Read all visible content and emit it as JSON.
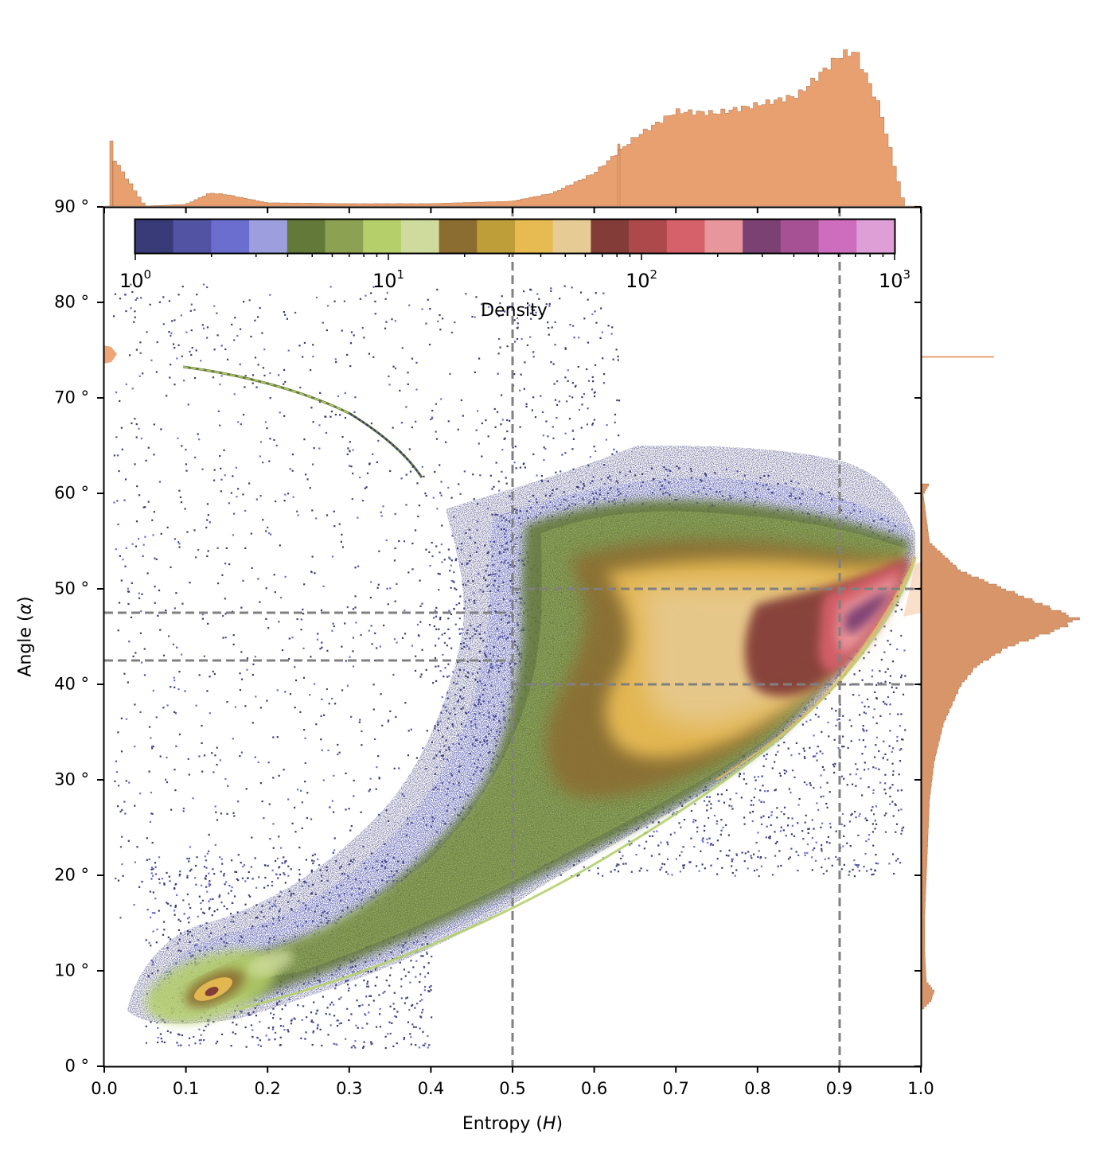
{
  "chart_data": {
    "type": "heatmap",
    "subtype": "2d-density-with-marginal-histograms",
    "xlabel": "Entropy (H)",
    "xlabel_parts": {
      "text": "Entropy (",
      "symbol": "H",
      "suffix": ")"
    },
    "ylabel": "Angle (α)",
    "ylabel_parts": {
      "text": "Angle (",
      "symbol": "α",
      "suffix": ")"
    },
    "xlim": [
      0.0,
      1.0
    ],
    "ylim": [
      0,
      90
    ],
    "x_ticks": [
      "0.0",
      "0.1",
      "0.2",
      "0.3",
      "0.4",
      "0.5",
      "0.6",
      "0.7",
      "0.8",
      "0.9",
      "1.0"
    ],
    "y_ticks": [
      "0 °",
      "10 °",
      "20 °",
      "30 °",
      "40 °",
      "50 °",
      "60 °",
      "70 °",
      "80 °",
      "90 °"
    ],
    "grid": false,
    "colorbar": {
      "label": "Density",
      "scale": "log",
      "range": [
        1,
        1000
      ],
      "tick_labels": [
        {
          "base": "10",
          "exp": "0"
        },
        {
          "base": "10",
          "exp": "1"
        },
        {
          "base": "10",
          "exp": "2"
        },
        {
          "base": "10",
          "exp": "3"
        }
      ],
      "position": "inset-top",
      "colors": [
        "#393b79",
        "#5254a3",
        "#6b6ecf",
        "#9c9ede",
        "#637939",
        "#8ca252",
        "#b5cf6b",
        "#cedb9c",
        "#8c6d31",
        "#bd9e39",
        "#e7ba52",
        "#e7cb94",
        "#843c39",
        "#ad494a",
        "#d6616b",
        "#e7969c",
        "#7b4173",
        "#a55194",
        "#ce6dbd",
        "#de9ed6"
      ]
    },
    "reference_lines": [
      {
        "orientation": "vertical",
        "x": 0.5,
        "style": "dashed",
        "color": "#808080"
      },
      {
        "orientation": "vertical",
        "x": 0.9,
        "style": "dashed",
        "color": "#808080"
      },
      {
        "orientation": "horizontal",
        "y": 50,
        "x_range": [
          0.5,
          1.0
        ],
        "style": "dashed",
        "color": "#808080"
      },
      {
        "orientation": "horizontal",
        "y": 40,
        "x_range": [
          0.5,
          1.0
        ],
        "style": "dashed",
        "color": "#808080"
      },
      {
        "orientation": "horizontal",
        "y": 47.5,
        "x_range": [
          0.0,
          0.5
        ],
        "style": "dashed",
        "color": "#808080"
      },
      {
        "orientation": "horizontal",
        "y": 42.5,
        "x_range": [
          0.0,
          0.5
        ],
        "style": "dashed",
        "color": "#808080"
      }
    ],
    "density_features": [
      {
        "name": "main-body",
        "H_range": [
          0.5,
          0.97
        ],
        "alpha_range": [
          25,
          60
        ],
        "peak_density": "~1000",
        "peak_at": {
          "H": 0.93,
          "alpha": 47
        }
      },
      {
        "name": "low-entropy-cluster",
        "H_range": [
          0.05,
          0.4
        ],
        "alpha_range": [
          3,
          15
        ],
        "peak_density": "~100",
        "peak_at": {
          "H": 0.13,
          "alpha": 7.5
        }
      },
      {
        "name": "thin-curve",
        "from": {
          "H": 0.1,
          "alpha": 73
        },
        "to": {
          "H": 0.39,
          "alpha": 61.5
        }
      },
      {
        "name": "lower-boundary-curve",
        "from": {
          "H": 0.1,
          "alpha": 5
        },
        "to": {
          "H": 0.97,
          "alpha": 53
        }
      }
    ],
    "marginal_x_histogram": {
      "color": "#e8a070",
      "bins_x": [
        0.0,
        0.05,
        0.1,
        0.13,
        0.15,
        0.2,
        0.3,
        0.4,
        0.5,
        0.55,
        0.6,
        0.65,
        0.7,
        0.75,
        0.8,
        0.85,
        0.9,
        0.92,
        0.95,
        0.97,
        0.98
      ],
      "relative_heights": [
        0.38,
        0.0,
        0.01,
        0.08,
        0.07,
        0.02,
        0.015,
        0.015,
        0.03,
        0.08,
        0.2,
        0.42,
        0.58,
        0.57,
        0.62,
        0.68,
        0.92,
        0.95,
        0.6,
        0.2,
        0.0
      ],
      "note": "spike at H≈0.01; second spike near H≈0.632"
    },
    "marginal_y_histogram": {
      "color": "#d8956a",
      "bins_alpha": [
        74.2,
        60,
        55,
        52,
        50,
        48,
        47,
        46,
        44,
        42,
        40,
        36,
        32,
        28,
        24,
        20,
        16,
        12,
        9,
        8,
        7,
        6
      ],
      "relative_widths": [
        0.5,
        0.01,
        0.05,
        0.25,
        0.55,
        0.85,
        1.0,
        0.9,
        0.55,
        0.35,
        0.25,
        0.14,
        0.08,
        0.05,
        0.04,
        0.03,
        0.02,
        0.02,
        0.03,
        0.08,
        0.06,
        0.0
      ],
      "note": "thin line at α≈74.2°; peak near α≈47°"
    }
  }
}
